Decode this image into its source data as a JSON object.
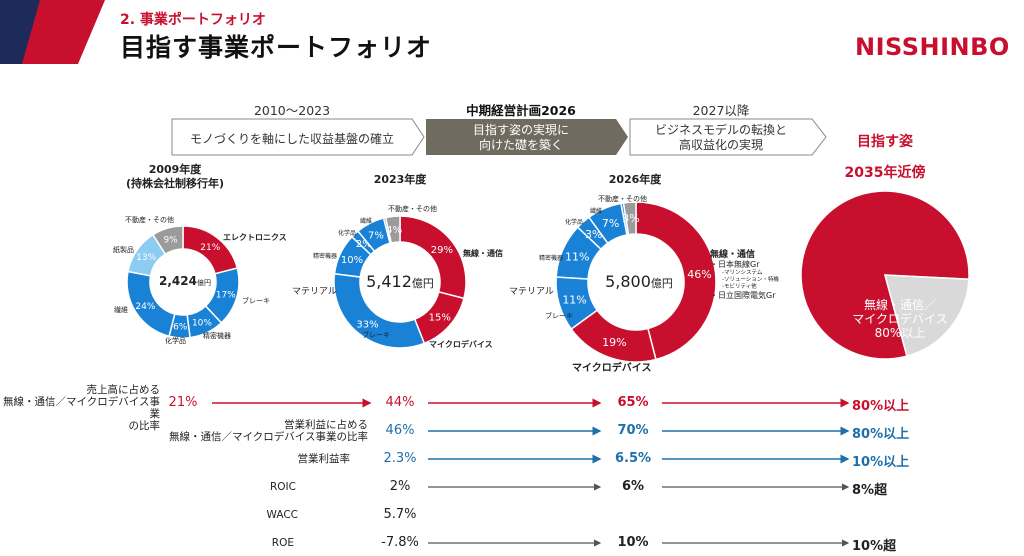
{
  "header": {
    "section": "2. 事業ポートフォリオ",
    "title": "目指す事業ポートフォリオ",
    "logo": "NISSHINBO"
  },
  "phases": [
    {
      "period": "2010～2023",
      "label": "モノづくりを軸にした収益基盤の確立"
    },
    {
      "period": "中期経営計画2026",
      "label_line1": "目指す姿の実現に",
      "label_line2": "向けた礎を築く"
    },
    {
      "period": "2027以降",
      "label_line1": "ビジネスモデルの転換と",
      "label_line2": "高収益化の実現"
    }
  ],
  "goal": {
    "title": "目指す姿",
    "subtitle": "2035年近傍",
    "pie_line1": "無線・通信／",
    "pie_line2": "マイクロデバイス",
    "pie_line3": "80%以上",
    "share": 80
  },
  "chart_data": [
    {
      "type": "pie",
      "title": "2009年度",
      "subtitle": "(持株会社制移行年)",
      "center_value": "2,424",
      "center_unit": "億円",
      "slices": [
        {
          "label": "エレクトロニクス",
          "value": 21,
          "text": "21%",
          "color": "#c8102e"
        },
        {
          "label": "ブレーキ",
          "value": 17,
          "text": "17%",
          "color": "#1a82d6"
        },
        {
          "label": "精密機器",
          "value": 10,
          "text": "10%",
          "color": "#1a82d6"
        },
        {
          "label": "化学品",
          "value": 6,
          "text": "6%",
          "color": "#1a82d6"
        },
        {
          "label": "繊維",
          "value": 24,
          "text": "24%",
          "color": "#1a82d6"
        },
        {
          "label": "紙製品",
          "value": 13,
          "text": "13%",
          "color": "#8ccbf2"
        },
        {
          "label": "不動産・その他",
          "value": 9,
          "text": "9%",
          "color": "#9b9b9b"
        }
      ]
    },
    {
      "type": "pie",
      "title": "2023年度",
      "center_value": "5,412",
      "center_unit": "億円",
      "slices": [
        {
          "label": "無線・通信",
          "value": 29,
          "text": "29%",
          "color": "#c8102e"
        },
        {
          "label": "マイクロデバイス",
          "value": 15,
          "text": "15%",
          "color": "#c8102e"
        },
        {
          "label": "ブレーキ",
          "value": 33,
          "text": "33%",
          "color": "#1a82d6"
        },
        {
          "label": "マテリアル",
          "value": 10,
          "text": "10%",
          "color": "#1a82d6"
        },
        {
          "label": "精密機器",
          "value": 2,
          "text": "2%",
          "color": "#1a82d6"
        },
        {
          "label": "化学品",
          "value": 7,
          "text": "7%",
          "color": "#1a82d6"
        },
        {
          "label": "繊維",
          "value": 0.5,
          "text": "",
          "color": "#1a82d6"
        },
        {
          "label": "不動産・その他",
          "value": 3.5,
          "text": "4%",
          "color": "#9b9b9b"
        }
      ]
    },
    {
      "type": "pie",
      "title": "2026年度",
      "center_value": "5,800",
      "center_unit": "億円",
      "slices": [
        {
          "label": "無線・通信",
          "value": 46,
          "text": "46%",
          "color": "#c8102e"
        },
        {
          "label": "マイクロデバイス",
          "value": 19,
          "text": "19%",
          "color": "#c8102e"
        },
        {
          "label": "ブレーキ",
          "value": 11,
          "text": "11%",
          "color": "#1a82d6"
        },
        {
          "label": "マテリアル",
          "value": 11,
          "text": "11%",
          "color": "#1a82d6"
        },
        {
          "label": "精密機器",
          "value": 3,
          "text": "3%",
          "color": "#1a82d6"
        },
        {
          "label": "化学品",
          "value": 7,
          "text": "7%",
          "color": "#1a82d6"
        },
        {
          "label": "繊維",
          "value": 0.5,
          "text": "",
          "color": "#1a82d6"
        },
        {
          "label": "不動産・その他",
          "value": 2.5,
          "text": "3%",
          "color": "#9b9b9b"
        }
      ]
    }
  ],
  "wireless_legend": {
    "title": "無線・通信",
    "item1": "・日本無線Gr",
    "sub1": "-マリンシステム",
    "sub2": "-ソリューション・特機",
    "sub3": "-モビリティ他",
    "item2": "・日立国際電気Gr"
  },
  "metrics": [
    {
      "label": "売上高に占める\n無線・通信／マイクロデバイス事業\nの比率",
      "v2009": "21%",
      "v2023": "44%",
      "v2026": "65%",
      "vgoal": "80%以上",
      "color": "red"
    },
    {
      "label": "営業利益に占める\n無線・通信／マイクロデバイス事業の比率",
      "v2023": "46%",
      "v2026": "70%",
      "vgoal": "80%以上",
      "color": "blue"
    },
    {
      "label": "営業利益率",
      "v2023": "2.3%",
      "v2026": "6.5%",
      "vgoal": "10%以上",
      "color": "blue"
    },
    {
      "label": "ROIC",
      "v2023": "2%",
      "v2026": "6%",
      "vgoal": "8%超",
      "color": "dark"
    },
    {
      "label": "WACC",
      "v2023": "5.7%",
      "v2026": "",
      "vgoal": "",
      "color": "dark"
    },
    {
      "label": "ROE",
      "v2023": "-7.8%",
      "v2026": "10%",
      "vgoal": "10%超",
      "color": "dark"
    }
  ],
  "colors": {
    "accent": "#c8102e",
    "blue": "#1a82d6",
    "light_blue": "#8ccbf2",
    "gray": "#9b9b9b",
    "arrow_dark": "#6f6b5f",
    "metric_blue": "#1f6fa8",
    "navy": "#1e2a5a"
  }
}
